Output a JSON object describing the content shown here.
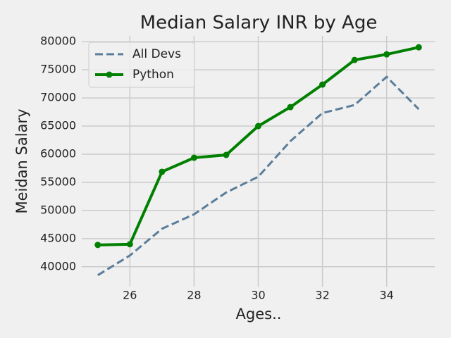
{
  "chart_data": {
    "type": "line",
    "title": "Median Salary INR by Age",
    "xlabel": "Ages..",
    "ylabel": "Meidan Salary",
    "x": [
      25,
      26,
      27,
      28,
      29,
      30,
      31,
      32,
      33,
      34,
      35
    ],
    "series": [
      {
        "name": "All Devs",
        "color": "#5a7d9a",
        "linestyle": "dashed",
        "marker": false,
        "values": [
          38496,
          42000,
          46752,
          49320,
          53200,
          56000,
          62316,
          67317,
          68748,
          73752,
          68000
        ]
      },
      {
        "name": "Python",
        "color": "#008000",
        "linestyle": "solid",
        "marker": true,
        "values": [
          43875,
          44000,
          56875,
          59375,
          59875,
          65000,
          68375,
          72375,
          76750,
          77750,
          79000
        ]
      }
    ],
    "xlim": [
      24.5,
      35.5
    ],
    "xticks": [
      26,
      28,
      30,
      32,
      34
    ],
    "ylim": [
      36471,
      81025
    ],
    "yticks": [
      40000,
      45000,
      50000,
      55000,
      60000,
      65000,
      70000,
      75000,
      80000
    ],
    "grid": true,
    "legend": "upper left"
  }
}
